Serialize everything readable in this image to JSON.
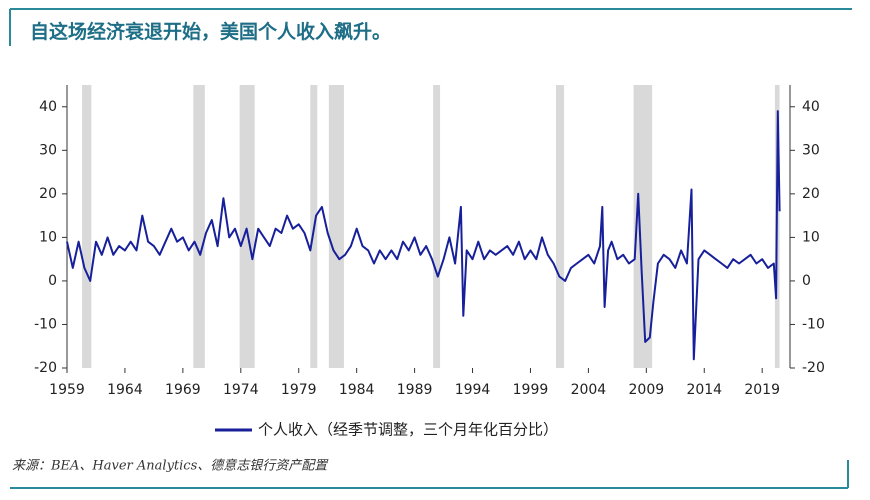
{
  "chart_data": {
    "type": "line",
    "title": "自这场经济衰退开始，美国个人收入飙升。",
    "source": "来源：BEA、Haver Analytics、德意志银行资产配置",
    "xlim": [
      1959,
      2021.4
    ],
    "xticks": [
      1959,
      1964,
      1969,
      1974,
      1979,
      1984,
      1989,
      1994,
      1999,
      2004,
      2009,
      2014,
      2019
    ],
    "ylim": [
      -20,
      45
    ],
    "yticks": [
      -20,
      -10,
      0,
      10,
      20,
      30,
      40
    ],
    "y2lim": [
      -20,
      45
    ],
    "y2ticks": [
      -20,
      -10,
      0,
      10,
      20,
      30,
      40
    ],
    "recessions": [
      [
        1960.3,
        1961.1
      ],
      [
        1969.9,
        1970.9
      ],
      [
        1973.9,
        1975.2
      ],
      [
        1980.0,
        1980.6
      ],
      [
        1981.6,
        1982.9
      ],
      [
        1990.6,
        1991.2
      ],
      [
        2001.2,
        2001.9
      ],
      [
        2007.9,
        2009.5
      ],
      [
        2020.1,
        2020.5
      ]
    ],
    "recession_color": "#d9d9d9",
    "series": [
      {
        "name": "个人收入（经季节调整，三个月年化百分比）",
        "color": "#17209a",
        "x": [
          1959,
          1959.5,
          1960,
          1960.5,
          1961,
          1961.5,
          1962,
          1962.5,
          1963,
          1963.5,
          1964,
          1964.5,
          1965,
          1965.5,
          1966,
          1966.5,
          1967,
          1967.5,
          1968,
          1968.5,
          1969,
          1969.5,
          1970,
          1970.5,
          1971,
          1971.5,
          1972,
          1972.5,
          1973,
          1973.5,
          1974,
          1974.5,
          1975,
          1975.5,
          1976,
          1976.5,
          1977,
          1977.5,
          1978,
          1978.5,
          1979,
          1979.5,
          1980,
          1980.5,
          1981,
          1981.5,
          1982,
          1982.5,
          1983,
          1983.5,
          1984,
          1984.5,
          1985,
          1985.5,
          1986,
          1986.5,
          1987,
          1987.5,
          1988,
          1988.5,
          1989,
          1989.5,
          1990,
          1990.5,
          1991,
          1991.5,
          1992,
          1992.5,
          1993,
          1993.2,
          1993.5,
          1994,
          1994.5,
          1995,
          1995.5,
          1996,
          1996.5,
          1997,
          1997.5,
          1998,
          1998.5,
          1999,
          1999.5,
          2000,
          2000.5,
          2001,
          2001.5,
          2002,
          2002.5,
          2003,
          2003.5,
          2004,
          2004.5,
          2005,
          2005.2,
          2005.4,
          2005.7,
          2006,
          2006.5,
          2007,
          2007.5,
          2008,
          2008.3,
          2008.6,
          2008.9,
          2009.3,
          2009.6,
          2010,
          2010.5,
          2011,
          2011.5,
          2012,
          2012.5,
          2012.9,
          2013.1,
          2013.5,
          2014,
          2014.5,
          2015,
          2015.5,
          2016,
          2016.5,
          2017,
          2017.5,
          2018,
          2018.5,
          2019,
          2019.5,
          2020,
          2020.2,
          2020.35,
          2020.5
        ],
        "values": [
          9,
          3,
          9,
          3,
          0,
          9,
          6,
          10,
          6,
          8,
          7,
          9,
          7,
          15,
          9,
          8,
          6,
          9,
          12,
          9,
          10,
          7,
          9,
          6,
          11,
          14,
          8,
          19,
          10,
          12,
          8,
          12,
          5,
          12,
          10,
          8,
          12,
          11,
          15,
          12,
          13,
          11,
          7,
          15,
          17,
          11,
          7,
          5,
          6,
          8,
          12,
          8,
          7,
          4,
          7,
          5,
          7,
          5,
          9,
          7,
          10,
          6,
          8,
          5,
          1,
          5,
          10,
          4,
          17,
          -8,
          7,
          5,
          9,
          5,
          7,
          6,
          7,
          8,
          6,
          9,
          5,
          7,
          5,
          10,
          6,
          4,
          1,
          0,
          3,
          4,
          5,
          6,
          4,
          8,
          17,
          -6,
          7,
          9,
          5,
          6,
          4,
          5,
          20,
          2,
          -14,
          -13,
          -5,
          4,
          6,
          5,
          3,
          7,
          4,
          21,
          -18,
          5,
          7,
          6,
          5,
          4,
          3,
          5,
          4,
          5,
          6,
          4,
          5,
          3,
          4,
          -4,
          39,
          16
        ]
      }
    ]
  }
}
